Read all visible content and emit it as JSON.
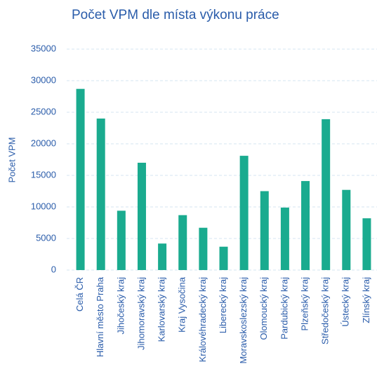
{
  "chart_data": {
    "type": "bar",
    "title": "Počet VPM dle místa výkonu práce",
    "y_label": "Počet VPM",
    "categories": [
      "Celá ČR",
      "Hlavní město Praha",
      "Jihočeský kraj",
      "Jihomoravský kraj",
      "Karlovarský kraj",
      "Kraj Vysočina",
      "Královéhradecký kraj",
      "Liberecký kraj",
      "Moravskoslezský kraj",
      "Olomoucký kraj",
      "Pardubický kraj",
      "Plzeňský kraj",
      "Středočeský kraj",
      "Ústecký kraj",
      "Zlínský kraj"
    ],
    "values": [
      28700,
      24000,
      9400,
      17000,
      4200,
      8700,
      6700,
      3700,
      18100,
      12500,
      9900,
      14100,
      23900,
      12700,
      8200
    ],
    "color": "#1aab8f",
    "ylim": [
      0,
      35000
    ],
    "yticks": [
      0,
      5000,
      10000,
      15000,
      20000,
      25000,
      30000,
      35000
    ],
    "grid": true
  }
}
